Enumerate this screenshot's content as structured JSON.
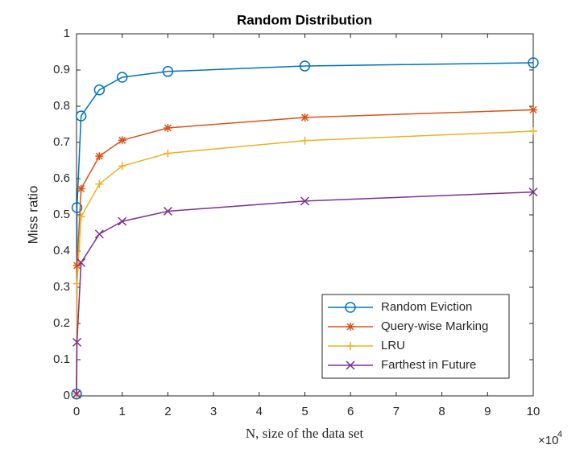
{
  "chart_data": {
    "type": "line",
    "title": "Random Distribution",
    "xlabel": "N, size of the data set",
    "ylabel": "Miss ratio",
    "x_multiplier": "×10",
    "x_multiplier_exponent": "4",
    "x": [
      0.001,
      0.01,
      0.1,
      0.5,
      1,
      2,
      5,
      10
    ],
    "series": [
      {
        "name": "Random Eviction",
        "color": "#0072bd",
        "marker": "circle",
        "values": [
          0.005,
          0.52,
          0.773,
          0.845,
          0.88,
          0.896,
          0.911,
          0.92
        ]
      },
      {
        "name": "Query-wise Marking",
        "color": "#d95319",
        "marker": "asterisk",
        "values": [
          0.005,
          0.36,
          0.572,
          0.662,
          0.706,
          0.74,
          0.769,
          0.79
        ]
      },
      {
        "name": "LRU",
        "color": "#edb120",
        "marker": "plus",
        "values": [
          0.005,
          0.31,
          0.495,
          0.585,
          0.635,
          0.67,
          0.705,
          0.731
        ]
      },
      {
        "name": "Farthest in Future",
        "color": "#7e2f8e",
        "marker": "cross",
        "values": [
          0.005,
          0.148,
          0.368,
          0.447,
          0.482,
          0.51,
          0.538,
          0.563
        ]
      }
    ],
    "xlim": [
      0,
      10
    ],
    "xticks": [
      0,
      1,
      2,
      3,
      4,
      5,
      6,
      7,
      8,
      9,
      10
    ],
    "ylim": [
      0,
      1
    ],
    "yticks": [
      0,
      0.1,
      0.2,
      0.3,
      0.4,
      0.5,
      0.6,
      0.7,
      0.8,
      0.9,
      1
    ],
    "grid": false,
    "legend": "lower right"
  }
}
